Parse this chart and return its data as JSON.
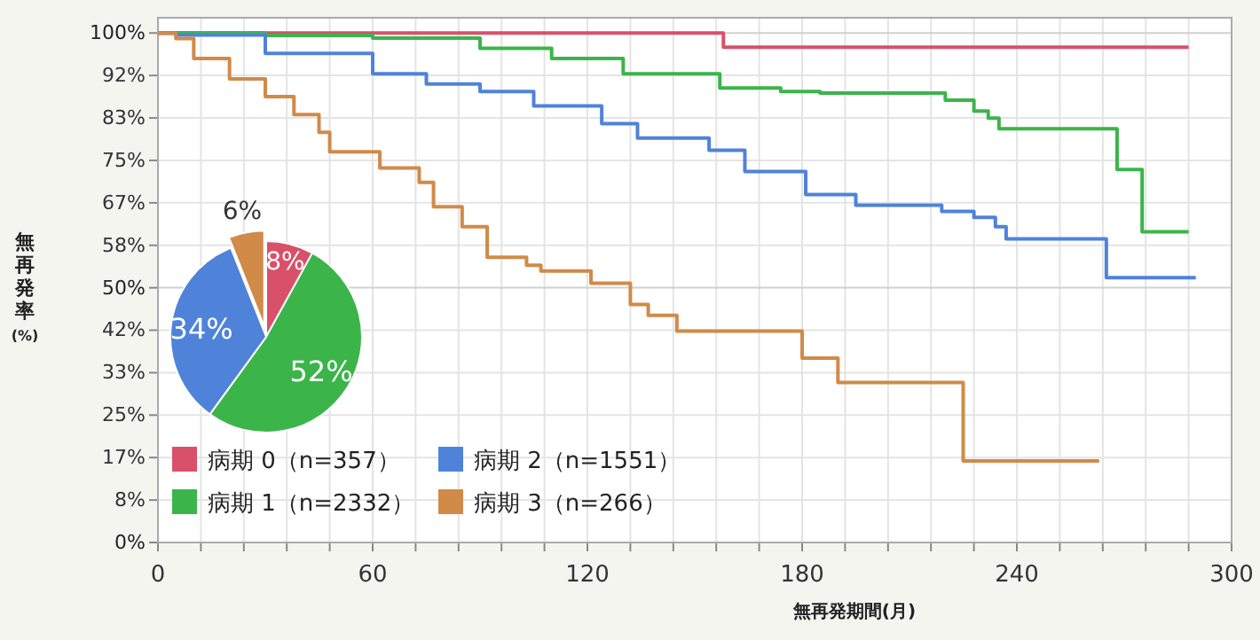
{
  "chart_data": [
    {
      "type": "step",
      "xlabel": "無再発期間(月)",
      "ylabel": "無再発率(%)",
      "xlim": [
        0,
        300
      ],
      "ylim": [
        0,
        103
      ],
      "xticks": [
        0,
        {
          "value": 12,
          "label": null
        },
        {
          "value": 24,
          "label": null
        },
        {
          "value": 36,
          "label": null
        },
        {
          "value": 48,
          "label": null
        },
        60,
        {
          "value": 72,
          "label": null
        },
        {
          "value": 84,
          "label": null
        },
        {
          "value": 96,
          "label": null
        },
        {
          "value": 108,
          "label": null
        },
        120,
        {
          "value": 132,
          "label": null
        },
        {
          "value": 144,
          "label": null
        },
        {
          "value": 156,
          "label": null
        },
        {
          "value": 168,
          "label": null
        },
        180,
        {
          "value": 192,
          "label": null
        },
        {
          "value": 204,
          "label": null
        },
        {
          "value": 216,
          "label": null
        },
        {
          "value": 228,
          "label": null
        },
        240,
        {
          "value": 252,
          "label": null
        },
        {
          "value": 264,
          "label": null
        },
        {
          "value": 276,
          "label": null
        },
        {
          "value": 288,
          "label": null
        },
        300
      ],
      "yticks": [
        {
          "value": 0,
          "label": "0%"
        },
        {
          "value": 8.33,
          "label": "8%"
        },
        {
          "value": 16.67,
          "label": "17%"
        },
        {
          "value": 25,
          "label": "25%"
        },
        {
          "value": 33.33,
          "label": "33%"
        },
        {
          "value": 41.67,
          "label": "42%"
        },
        {
          "value": 50,
          "label": "50%"
        },
        {
          "value": 58.33,
          "label": "58%"
        },
        {
          "value": 66.67,
          "label": "67%"
        },
        {
          "value": 75,
          "label": "75%"
        },
        {
          "value": 83.33,
          "label": "83%"
        },
        {
          "value": 91.67,
          "label": "92%"
        },
        {
          "value": 100,
          "label": "100%"
        }
      ],
      "grid": true,
      "legend": "bottom left",
      "series": [
        {
          "name": "病期 0（n=357）",
          "color": "#d9506a",
          "x": [
            0,
            158,
            288
          ],
          "values": [
            100,
            97.2,
            97.2
          ]
        },
        {
          "name": "病期 1（n=2332）",
          "color": "#3bb54a",
          "x": [
            0,
            30,
            60,
            90,
            110,
            130,
            157,
            174,
            185,
            220,
            228,
            232,
            235,
            268,
            275,
            288
          ],
          "values": [
            100,
            99.5,
            99,
            97,
            95,
            92,
            89.2,
            88.5,
            88.2,
            86.8,
            84.7,
            83.3,
            81.2,
            73.2,
            61,
            61
          ]
        },
        {
          "name": "病期 2（n=1551）",
          "color": "#4f83d9",
          "x": [
            0,
            5,
            30,
            60,
            75,
            90,
            105,
            124,
            134,
            154,
            164,
            181,
            195,
            219,
            228,
            234,
            237,
            265,
            290
          ],
          "values": [
            100,
            99.6,
            96,
            92,
            90,
            88.5,
            85.7,
            82.2,
            79.4,
            77,
            72.8,
            68.3,
            66.2,
            65,
            63.8,
            62,
            59.6,
            52,
            52
          ]
        },
        {
          "name": "病期 3（n=266）",
          "color": "#d18a48",
          "x": [
            0,
            5,
            10,
            20,
            30,
            38,
            45,
            48,
            62,
            73,
            77,
            85,
            92,
            103,
            107,
            121,
            132,
            137,
            145,
            180,
            190,
            225,
            263
          ],
          "values": [
            100,
            98.9,
            95,
            91,
            87.5,
            84,
            80.5,
            76.7,
            73.5,
            70.7,
            65.9,
            62,
            56,
            54.4,
            53.3,
            50.9,
            46.7,
            44.6,
            41.5,
            36.2,
            31.4,
            16,
            16
          ]
        }
      ]
    },
    {
      "type": "pie",
      "categories": [
        null,
        null,
        null,
        null
      ],
      "values": [
        8,
        52,
        34,
        6
      ],
      "colors": [
        "#d9506a",
        "#3bb54a",
        "#4f83d9",
        "#d18a48"
      ],
      "value_labels": [
        "8%",
        "52%",
        "34%",
        "6%"
      ]
    }
  ]
}
